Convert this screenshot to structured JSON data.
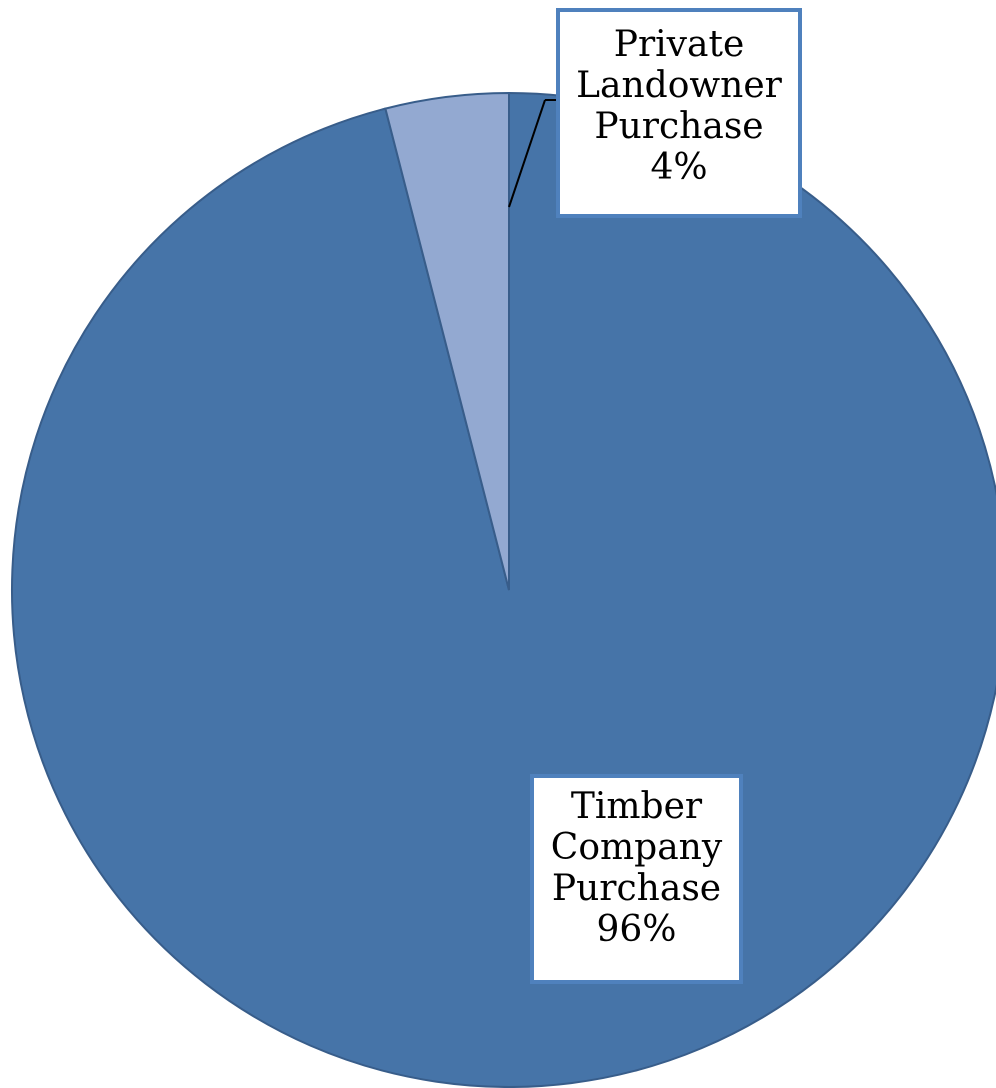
{
  "chart_data": {
    "type": "pie",
    "title": "",
    "start_angle_deg": 0,
    "direction": "clockwise",
    "slices": [
      {
        "label_lines": [
          "Timber",
          "Company",
          "Purchase"
        ],
        "percent_label": "96%",
        "value": 96,
        "color": "#4674a8"
      },
      {
        "label_lines": [
          "Private",
          "Landowner",
          "Purchase"
        ],
        "percent_label": "4%",
        "value": 4,
        "color": "#93a9d1"
      }
    ],
    "slice_border_color": "#385d8a",
    "label_border_color": "#4f81bd",
    "legend": "none"
  }
}
